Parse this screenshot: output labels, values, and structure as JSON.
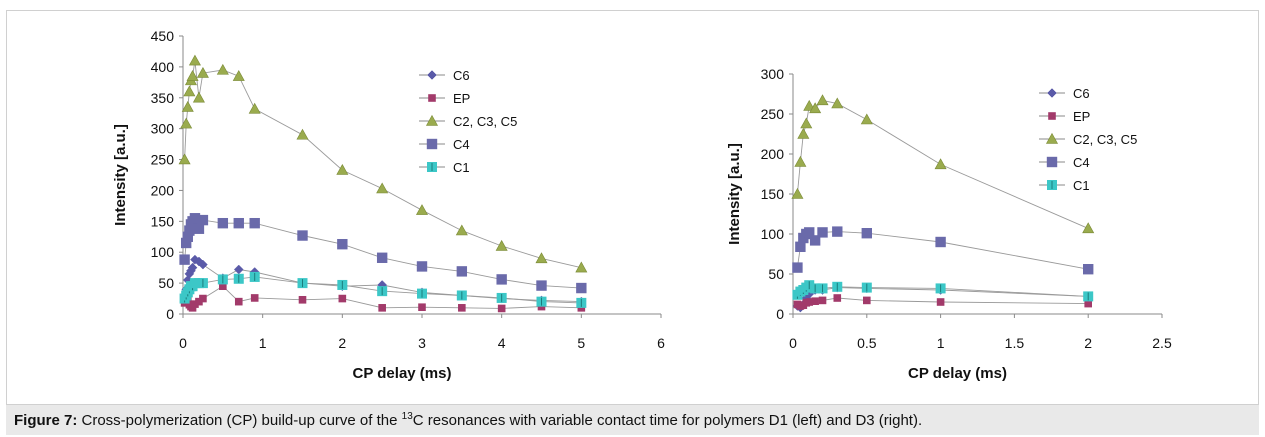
{
  "chart_data": [
    {
      "type": "scatter",
      "xlabel": "CP delay (ms)",
      "ylabel": "Intensity [a.u.]",
      "xlim": [
        0,
        6
      ],
      "ylim": [
        0,
        450
      ],
      "xticks": [
        0,
        1,
        2,
        3,
        4,
        5,
        6
      ],
      "yticks": [
        0,
        50,
        100,
        150,
        200,
        250,
        300,
        350,
        400,
        450
      ],
      "grid": false,
      "legend": "right",
      "series": [
        {
          "name": "C6",
          "marker": "diamond",
          "color": "#5a5aa8",
          "x": [
            0.02,
            0.04,
            0.06,
            0.08,
            0.1,
            0.12,
            0.15,
            0.2,
            0.25,
            0.5,
            0.7,
            0.9,
            1.5,
            2,
            2.5,
            3,
            3.5,
            4,
            4.5,
            5
          ],
          "y": [
            20,
            40,
            55,
            65,
            70,
            75,
            88,
            85,
            80,
            58,
            72,
            68,
            50,
            45,
            47,
            35,
            30,
            25,
            22,
            20
          ]
        },
        {
          "name": "EP",
          "marker": "square",
          "color": "#a23a6a",
          "x": [
            0.02,
            0.04,
            0.06,
            0.08,
            0.1,
            0.12,
            0.15,
            0.2,
            0.25,
            0.5,
            0.7,
            0.9,
            1.5,
            2,
            2.5,
            3,
            3.5,
            4,
            4.5,
            5
          ],
          "y": [
            18,
            20,
            22,
            15,
            12,
            10,
            16,
            20,
            25,
            45,
            20,
            26,
            23,
            25,
            10,
            11,
            10,
            9,
            12,
            10
          ]
        },
        {
          "name": "C2, C3, C5",
          "marker": "triangle",
          "color": "#9aab4e",
          "x": [
            0.02,
            0.04,
            0.06,
            0.08,
            0.1,
            0.12,
            0.15,
            0.2,
            0.25,
            0.5,
            0.7,
            0.9,
            1.5,
            2,
            2.5,
            3,
            3.5,
            4,
            4.5,
            5
          ],
          "y": [
            250,
            308,
            335,
            360,
            378,
            385,
            410,
            350,
            390,
            395,
            385,
            332,
            290,
            233,
            203,
            168,
            135,
            110,
            90,
            75
          ]
        },
        {
          "name": "C4",
          "marker": "big-square",
          "color": "#6a6aaa",
          "x": [
            0.02,
            0.04,
            0.06,
            0.08,
            0.1,
            0.12,
            0.15,
            0.2,
            0.25,
            0.5,
            0.7,
            0.9,
            1.5,
            2,
            2.5,
            3,
            3.5,
            4,
            4.5,
            5
          ],
          "y": [
            88,
            115,
            125,
            135,
            145,
            150,
            155,
            138,
            152,
            147,
            147,
            147,
            127,
            113,
            91,
            77,
            69,
            56,
            46,
            42
          ]
        },
        {
          "name": "C1",
          "marker": "square-bar",
          "color": "#3cc7c7",
          "x": [
            0.02,
            0.04,
            0.06,
            0.08,
            0.1,
            0.12,
            0.15,
            0.2,
            0.25,
            0.5,
            0.7,
            0.9,
            1.5,
            2,
            2.5,
            3,
            3.5,
            4,
            4.5,
            5
          ],
          "y": [
            25,
            30,
            35,
            40,
            45,
            45,
            50,
            50,
            50,
            56,
            57,
            60,
            50,
            47,
            37,
            33,
            30,
            26,
            20,
            18
          ]
        }
      ]
    },
    {
      "type": "scatter",
      "xlabel": "CP delay (ms)",
      "ylabel": "Intensity [a.u.]",
      "xlim": [
        0,
        2.5
      ],
      "ylim": [
        0,
        300
      ],
      "xticks": [
        0,
        0.5,
        1,
        1.5,
        2,
        2.5
      ],
      "yticks": [
        0,
        50,
        100,
        150,
        200,
        250,
        300
      ],
      "grid": false,
      "legend": "right",
      "series": [
        {
          "name": "C6",
          "marker": "diamond",
          "color": "#5a5aa8",
          "x": [
            0.03,
            0.05,
            0.07,
            0.09,
            0.11,
            0.15,
            0.2,
            0.3,
            0.5,
            1,
            2
          ],
          "y": [
            10,
            8,
            12,
            20,
            25,
            30,
            30,
            33,
            32,
            30,
            22
          ]
        },
        {
          "name": "EP",
          "marker": "square",
          "color": "#a23a6a",
          "x": [
            0.03,
            0.05,
            0.07,
            0.09,
            0.11,
            0.15,
            0.2,
            0.3,
            0.5,
            1,
            2
          ],
          "y": [
            12,
            10,
            11,
            14,
            15,
            16,
            17,
            20,
            17,
            15,
            13
          ]
        },
        {
          "name": "C2, C3, C5",
          "marker": "triangle",
          "color": "#9aab4e",
          "x": [
            0.03,
            0.05,
            0.07,
            0.09,
            0.11,
            0.15,
            0.2,
            0.3,
            0.5,
            1,
            2
          ],
          "y": [
            150,
            190,
            225,
            238,
            260,
            257,
            267,
            263,
            243,
            187,
            107
          ]
        },
        {
          "name": "C4",
          "marker": "big-square",
          "color": "#6a6aaa",
          "x": [
            0.03,
            0.05,
            0.07,
            0.09,
            0.11,
            0.15,
            0.2,
            0.3,
            0.5,
            1,
            2
          ],
          "y": [
            58,
            84,
            95,
            100,
            102,
            92,
            102,
            103,
            101,
            90,
            56
          ]
        },
        {
          "name": "C1",
          "marker": "square-bar",
          "color": "#3cc7c7",
          "x": [
            0.03,
            0.05,
            0.07,
            0.09,
            0.11,
            0.15,
            0.2,
            0.3,
            0.5,
            1,
            2
          ],
          "y": [
            24,
            28,
            30,
            33,
            36,
            32,
            32,
            34,
            33,
            32,
            22
          ]
        }
      ]
    }
  ],
  "caption": {
    "label": "Figure 7:",
    "text_before_sup": " Cross-polymerization (CP) build-up curve of the ",
    "sup": "13",
    "text_after_sup": "C resonances with variable contact time for polymers D1 (left) and D3 (right)."
  }
}
